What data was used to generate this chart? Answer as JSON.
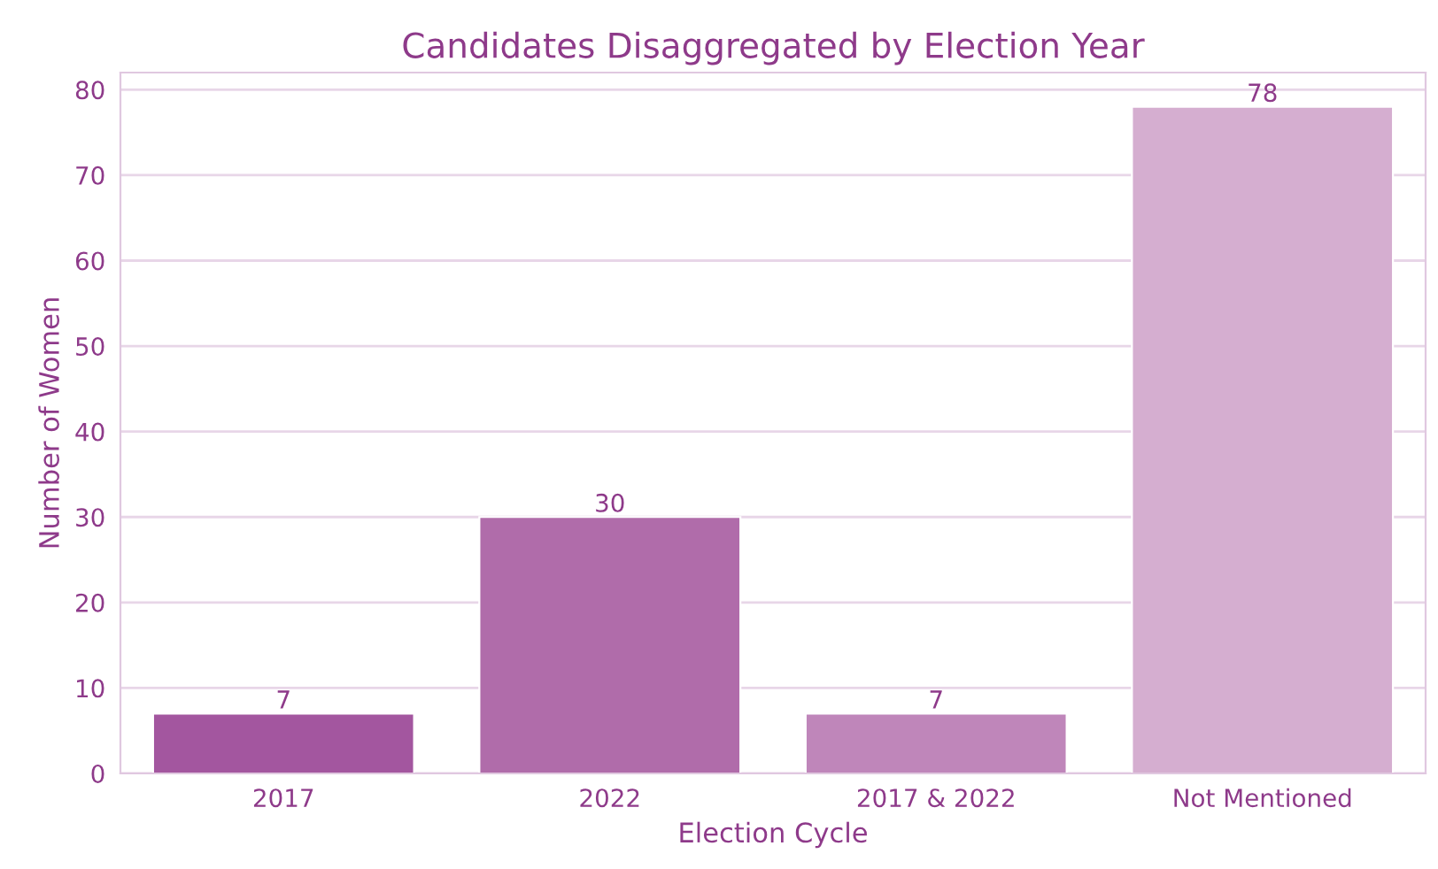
{
  "chart_data": {
    "type": "bar",
    "title": "Candidates Disaggregated by Election Year",
    "xlabel": "Election Cycle",
    "ylabel": "Number of Women",
    "categories": [
      "2017",
      "2022",
      "2017 & 2022",
      "Not Mentioned"
    ],
    "values": [
      7,
      30,
      7,
      78
    ],
    "colors": [
      "#a3569f",
      "#b06caa",
      "#bf86ba",
      "#d5aed0"
    ],
    "ylim": [
      0,
      82
    ],
    "yticks": [
      0,
      10,
      20,
      30,
      40,
      50,
      60,
      70,
      80
    ],
    "grid": "y",
    "data_labels": true
  }
}
